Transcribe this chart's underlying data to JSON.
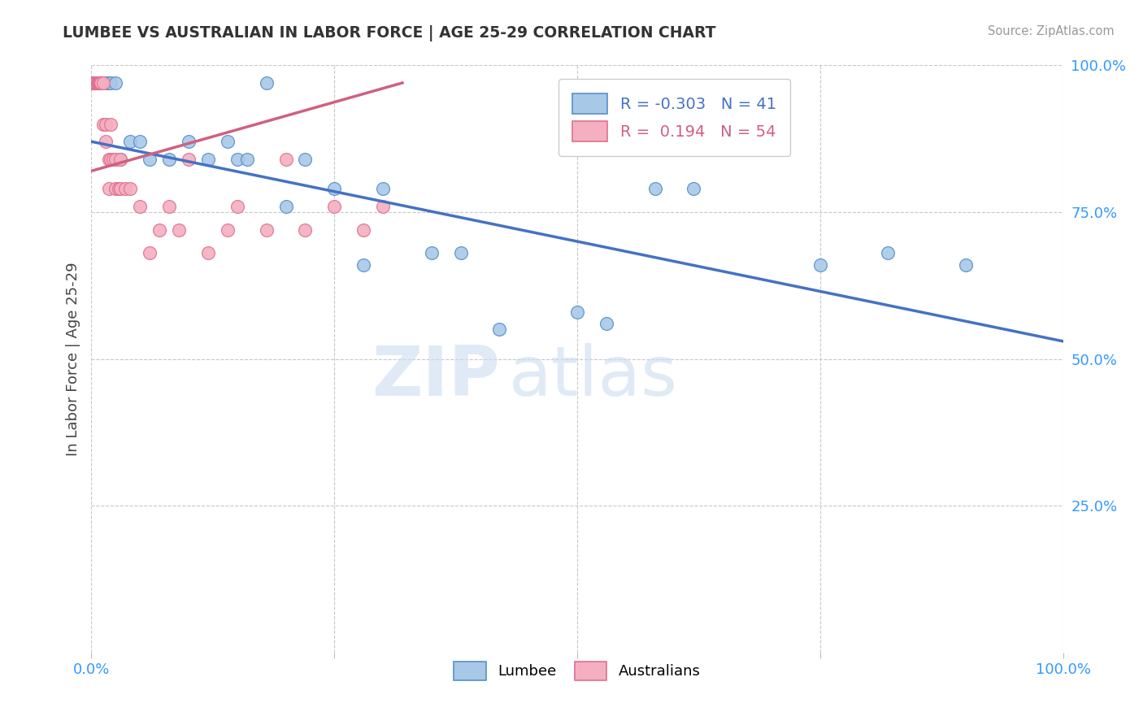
{
  "title": "LUMBEE VS AUSTRALIAN IN LABOR FORCE | AGE 25-29 CORRELATION CHART",
  "source_text": "Source: ZipAtlas.com",
  "ylabel": "In Labor Force | Age 25-29",
  "xlim": [
    0,
    1.0
  ],
  "ylim": [
    0,
    1.0
  ],
  "yticks_right": [
    0.25,
    0.5,
    0.75,
    1.0
  ],
  "ytick_labels_right": [
    "25.0%",
    "50.0%",
    "75.0%",
    "100.0%"
  ],
  "lumbee_R": -0.303,
  "lumbee_N": 41,
  "australian_R": 0.194,
  "australian_N": 54,
  "lumbee_color": "#a8c8e8",
  "lumbee_edge_color": "#5590c8",
  "lumbee_line_color": "#4472c4",
  "australian_color": "#f4b0c0",
  "australian_edge_color": "#e07090",
  "australian_line_color": "#d06080",
  "background_color": "#ffffff",
  "grid_color": "#c8c8c8",
  "lumbee_x": [
    0.002,
    0.003,
    0.004,
    0.005,
    0.006,
    0.007,
    0.008,
    0.009,
    0.01,
    0.012,
    0.015,
    0.018,
    0.02,
    0.025,
    0.03,
    0.04,
    0.05,
    0.06,
    0.08,
    0.1,
    0.12,
    0.14,
    0.15,
    0.16,
    0.18,
    0.2,
    0.22,
    0.25,
    0.28,
    0.3,
    0.35,
    0.38,
    0.42,
    0.5,
    0.53,
    0.58,
    0.62,
    0.65,
    0.75,
    0.82,
    0.9
  ],
  "lumbee_y": [
    0.97,
    0.97,
    0.97,
    0.97,
    0.97,
    0.97,
    0.97,
    0.97,
    0.97,
    0.97,
    0.97,
    0.97,
    0.97,
    0.97,
    0.84,
    0.87,
    0.87,
    0.84,
    0.84,
    0.87,
    0.84,
    0.87,
    0.84,
    0.84,
    0.97,
    0.76,
    0.84,
    0.79,
    0.66,
    0.79,
    0.68,
    0.68,
    0.55,
    0.58,
    0.56,
    0.79,
    0.79,
    0.87,
    0.66,
    0.68,
    0.66
  ],
  "australian_x": [
    0.001,
    0.001,
    0.001,
    0.002,
    0.002,
    0.002,
    0.003,
    0.003,
    0.003,
    0.004,
    0.004,
    0.005,
    0.005,
    0.006,
    0.006,
    0.007,
    0.007,
    0.008,
    0.008,
    0.009,
    0.01,
    0.01,
    0.01,
    0.012,
    0.012,
    0.015,
    0.015,
    0.018,
    0.018,
    0.02,
    0.02,
    0.022,
    0.025,
    0.025,
    0.028,
    0.03,
    0.03,
    0.035,
    0.04,
    0.05,
    0.06,
    0.07,
    0.08,
    0.09,
    0.1,
    0.12,
    0.14,
    0.15,
    0.18,
    0.2,
    0.22,
    0.25,
    0.28,
    0.3
  ],
  "australian_y": [
    0.97,
    0.97,
    0.97,
    0.97,
    0.97,
    0.97,
    0.97,
    0.97,
    0.97,
    0.97,
    0.97,
    0.97,
    0.97,
    0.97,
    0.97,
    0.97,
    0.97,
    0.97,
    0.97,
    0.97,
    0.97,
    0.97,
    0.97,
    0.97,
    0.9,
    0.9,
    0.87,
    0.84,
    0.79,
    0.9,
    0.84,
    0.84,
    0.84,
    0.79,
    0.79,
    0.84,
    0.79,
    0.79,
    0.79,
    0.76,
    0.68,
    0.72,
    0.76,
    0.72,
    0.84,
    0.68,
    0.72,
    0.76,
    0.72,
    0.84,
    0.72,
    0.76,
    0.72,
    0.76
  ],
  "lumbee_trend_x": [
    0.0,
    1.0
  ],
  "lumbee_trend_y": [
    0.87,
    0.53
  ],
  "australian_trend_x": [
    0.0,
    0.32
  ],
  "australian_trend_y": [
    0.82,
    0.97
  ],
  "watermark_zip": "ZIP",
  "watermark_atlas": "atlas"
}
